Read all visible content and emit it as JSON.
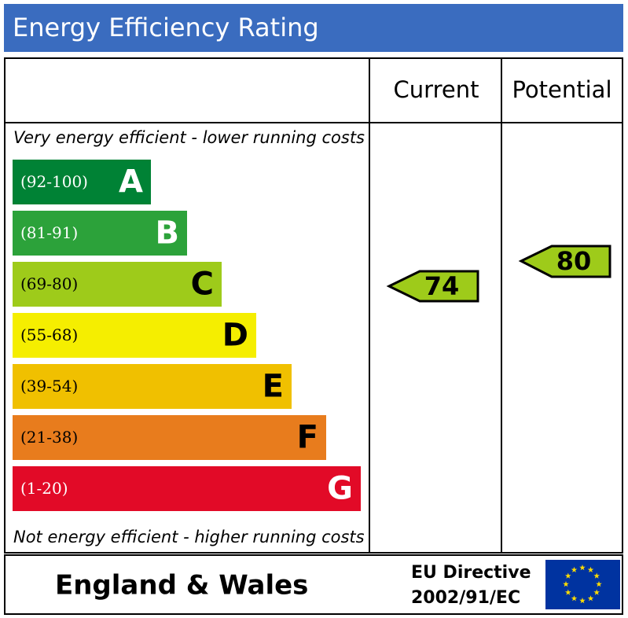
{
  "header": {
    "title": "Energy Efficiency Rating"
  },
  "columns": {
    "current": "Current",
    "potential": "Potential"
  },
  "top_note": "Very energy efficient - lower running costs",
  "bottom_note": "Not energy efficient - higher running costs",
  "bands": [
    {
      "range": "(92-100)",
      "letter": "A",
      "color": "#008235"
    },
    {
      "range": "(81-91)",
      "letter": "B",
      "color": "#2ca23a"
    },
    {
      "range": "(69-80)",
      "letter": "C",
      "color": "#9ecb1a"
    },
    {
      "range": "(55-68)",
      "letter": "D",
      "color": "#f5ee00"
    },
    {
      "range": "(39-54)",
      "letter": "E",
      "color": "#f0c000"
    },
    {
      "range": "(21-38)",
      "letter": "F",
      "color": "#e87c1d"
    },
    {
      "range": "(1-20)",
      "letter": "G",
      "color": "#e20a27"
    }
  ],
  "current": {
    "value": "74"
  },
  "potential": {
    "value": "80"
  },
  "footer": {
    "region": "England & Wales",
    "directive_line1": "EU Directive",
    "directive_line2": "2002/91/EC"
  }
}
